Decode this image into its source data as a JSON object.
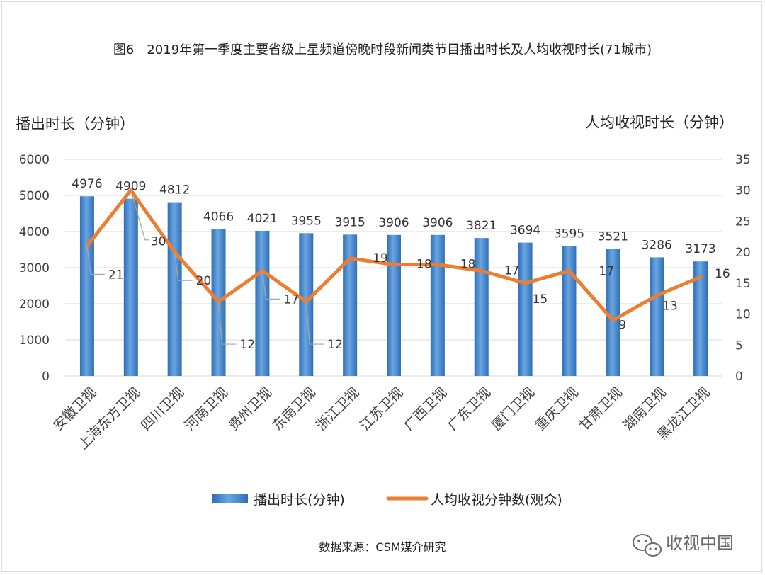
{
  "chart_data": {
    "type": "bar+line",
    "title": "图6　2019年第一季度主要省级上星频道傍晚时段新闻类节目播出时长及人均收视时长(71城市)",
    "left_axis_title": "播出时长（分钟）",
    "right_axis_title": "人均收视时长（分钟）",
    "categories": [
      "安徽卫视",
      "上海东方卫视",
      "四川卫视",
      "河南卫视",
      "贵州卫视",
      "东南卫视",
      "浙江卫视",
      "江苏卫视",
      "广西卫视",
      "广东卫视",
      "厦门卫视",
      "重庆卫视",
      "甘肃卫视",
      "湖南卫视",
      "黑龙江卫视"
    ],
    "series": [
      {
        "name": "播出时长(分钟)",
        "type": "bar",
        "axis": "left",
        "color": "#4f8fd3",
        "values": [
          4976,
          4909,
          4812,
          4066,
          4021,
          3955,
          3915,
          3906,
          3906,
          3821,
          3694,
          3595,
          3521,
          3286,
          3173
        ]
      },
      {
        "name": "人均收视分钟数(观众)",
        "type": "line",
        "axis": "right",
        "color": "#ed7d31",
        "values": [
          21,
          30,
          20,
          12,
          17,
          12,
          19,
          18,
          18,
          17,
          15,
          17,
          9,
          13,
          16
        ]
      }
    ],
    "left_ylim": [
      0,
      6000
    ],
    "left_ticks": [
      0,
      1000,
      2000,
      3000,
      4000,
      5000,
      6000
    ],
    "right_ylim": [
      0,
      35
    ],
    "right_ticks": [
      0,
      5,
      10,
      15,
      20,
      25,
      30,
      35
    ],
    "grid": true,
    "legend_position": "bottom"
  },
  "footer": {
    "source": "数据来源：CSM媒介研究",
    "watermark": "收视中国"
  }
}
